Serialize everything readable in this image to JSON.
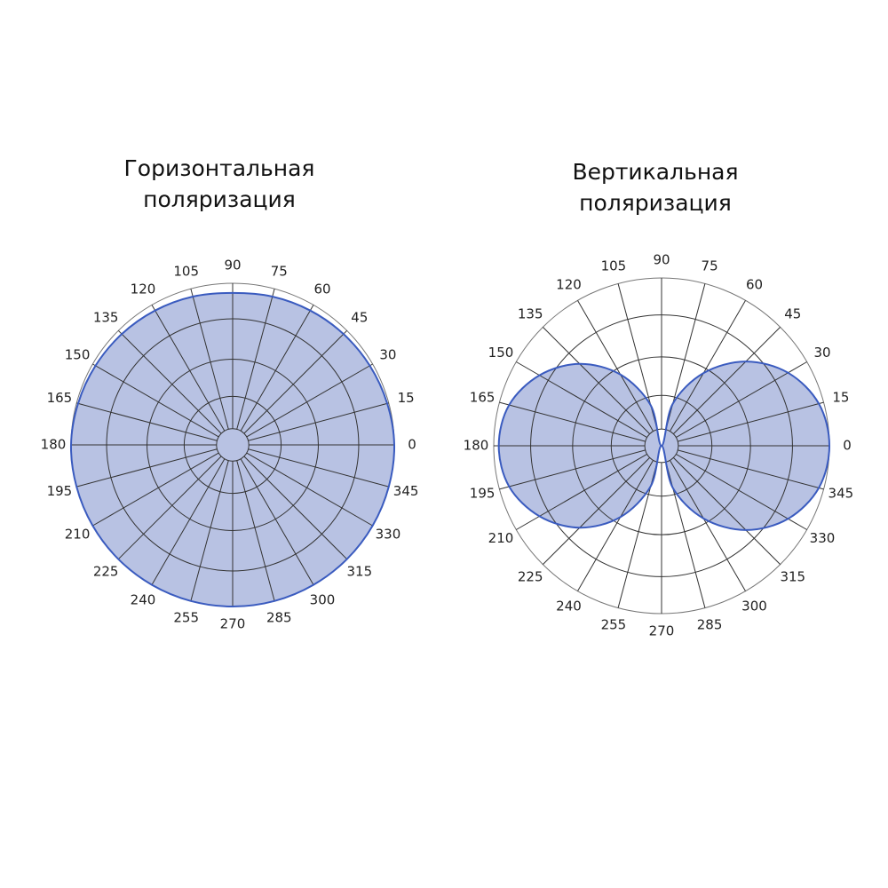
{
  "chart_data": [
    {
      "type": "polar",
      "title": "Горизонтальная поляризация",
      "angles": [
        0,
        15,
        30,
        45,
        60,
        75,
        90,
        105,
        120,
        135,
        150,
        165,
        180,
        195,
        210,
        225,
        240,
        255,
        270,
        285,
        300,
        315,
        330,
        345
      ],
      "values": [
        1,
        0.99,
        0.98,
        0.97,
        0.96,
        0.95,
        0.94,
        0.95,
        0.96,
        0.97,
        0.98,
        0.99,
        1,
        1,
        1,
        1,
        1,
        1,
        1,
        1,
        1,
        1,
        1,
        1
      ],
      "rlim": [
        0,
        1
      ],
      "rgrid": [
        0.1,
        0.3,
        0.53,
        0.78,
        1
      ],
      "color": "#3a5bbf",
      "fill": "#b8c2e3"
    },
    {
      "type": "polar",
      "title": "Вертикальная поляризация",
      "angles": [
        0,
        15,
        30,
        45,
        60,
        75,
        90,
        105,
        120,
        135,
        150,
        165,
        180,
        195,
        210,
        225,
        240,
        255,
        270,
        285,
        300,
        315,
        330,
        345
      ],
      "values": [
        1,
        0.97,
        0.87,
        0.71,
        0.5,
        0.26,
        0,
        0.25,
        0.49,
        0.69,
        0.84,
        0.94,
        0.97,
        0.94,
        0.84,
        0.69,
        0.49,
        0.25,
        0,
        0.26,
        0.5,
        0.71,
        0.87,
        0.97
      ],
      "rlim": [
        0,
        1
      ],
      "rgrid": [
        0.1,
        0.3,
        0.53,
        0.78,
        1
      ],
      "color": "#3a5bbf",
      "fill": "#b8c2e3"
    }
  ]
}
